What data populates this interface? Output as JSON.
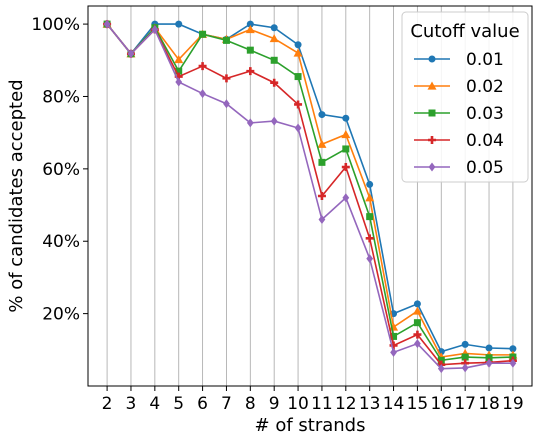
{
  "chart_data": {
    "type": "line",
    "xlabel": "# of strands",
    "ylabel": "% of candidates accepted",
    "x": [
      2,
      3,
      4,
      5,
      6,
      7,
      8,
      9,
      10,
      11,
      12,
      13,
      14,
      15,
      16,
      17,
      18,
      19
    ],
    "x_tick_labels": [
      "2",
      "3",
      "4",
      "5",
      "6",
      "7",
      "8",
      "9",
      "10",
      "11",
      "12",
      "13",
      "14",
      "15",
      "16",
      "17",
      "18",
      "19"
    ],
    "ylim": [
      0,
      1.05
    ],
    "y_ticks": [
      0.2,
      0.4,
      0.6,
      0.8,
      1.0
    ],
    "y_tick_labels": [
      "20%",
      "40%",
      "60%",
      "80%",
      "100%"
    ],
    "grid": "vertical",
    "legend": {
      "title": "Cutoff value",
      "placement": "top-right"
    },
    "series": [
      {
        "name": "0.01",
        "color": "#1f77b4",
        "marker": "circle",
        "values": [
          1.0,
          0.918,
          1.0,
          1.0,
          0.972,
          0.958,
          1.0,
          0.99,
          0.943,
          0.75,
          0.74,
          0.557,
          0.2,
          0.227,
          0.095,
          0.115,
          0.105,
          0.103
        ]
      },
      {
        "name": "0.02",
        "color": "#ff7f0e",
        "marker": "triangle",
        "values": [
          1.0,
          0.918,
          0.99,
          0.902,
          0.972,
          0.958,
          0.985,
          0.96,
          0.92,
          0.668,
          0.695,
          0.52,
          0.163,
          0.207,
          0.08,
          0.09,
          0.086,
          0.086
        ]
      },
      {
        "name": "0.03",
        "color": "#2ca02c",
        "marker": "square",
        "values": [
          1.0,
          0.918,
          0.99,
          0.87,
          0.972,
          0.955,
          0.928,
          0.9,
          0.855,
          0.618,
          0.655,
          0.468,
          0.137,
          0.175,
          0.071,
          0.08,
          0.078,
          0.08
        ]
      },
      {
        "name": "0.04",
        "color": "#d62728",
        "marker": "plus",
        "values": [
          1.0,
          0.918,
          0.985,
          0.855,
          0.884,
          0.85,
          0.87,
          0.838,
          0.778,
          0.525,
          0.605,
          0.408,
          0.112,
          0.142,
          0.059,
          0.063,
          0.065,
          0.07
        ]
      },
      {
        "name": "0.05",
        "color": "#9467bd",
        "marker": "diamond",
        "values": [
          1.0,
          0.918,
          0.985,
          0.84,
          0.808,
          0.78,
          0.727,
          0.732,
          0.713,
          0.46,
          0.52,
          0.352,
          0.093,
          0.117,
          0.048,
          0.05,
          0.063,
          0.063
        ]
      }
    ]
  }
}
